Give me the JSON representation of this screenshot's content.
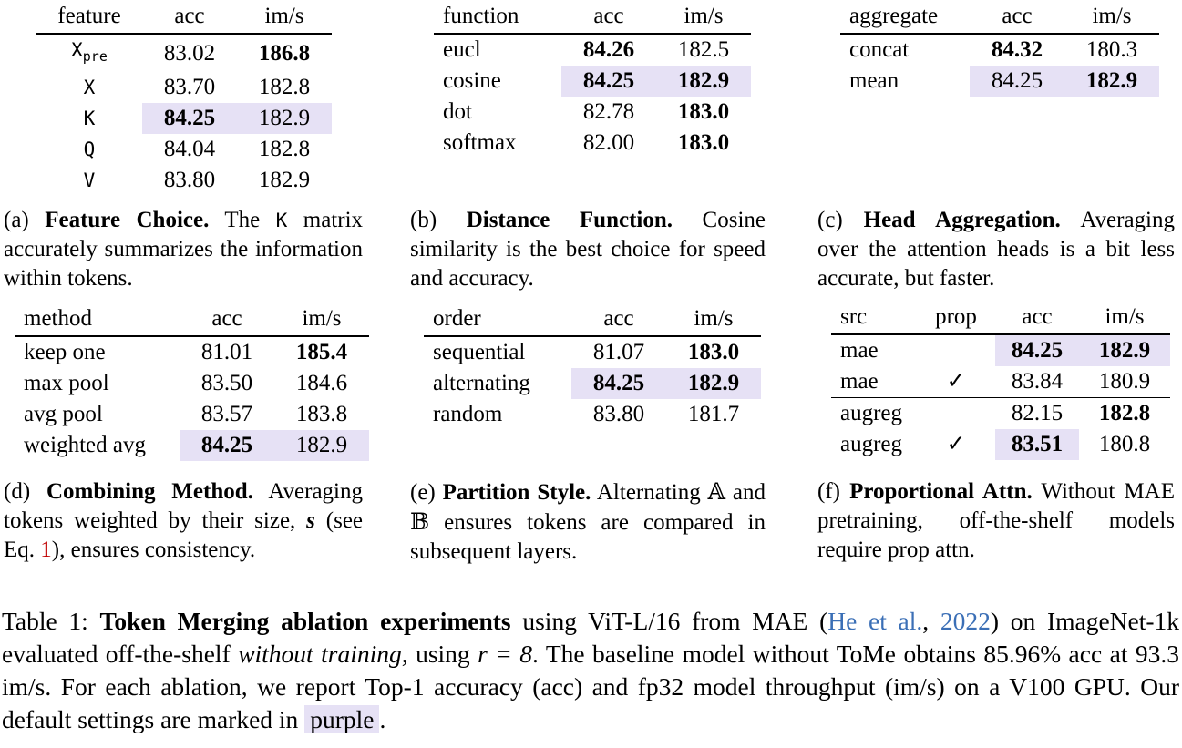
{
  "tables": {
    "a": {
      "headers": [
        "feature",
        "acc",
        "im/s"
      ],
      "rows": [
        {
          "name": "X",
          "sub": "pre",
          "acc": "83.02",
          "ims": "186.8"
        },
        {
          "name": "X",
          "acc": "83.70",
          "ims": "182.8"
        },
        {
          "name": "K",
          "acc": "84.25",
          "ims": "182.9"
        },
        {
          "name": "Q",
          "acc": "84.04",
          "ims": "182.8"
        },
        {
          "name": "V",
          "acc": "83.80",
          "ims": "182.9"
        }
      ]
    },
    "b": {
      "headers": [
        "function",
        "acc",
        "im/s"
      ],
      "rows": [
        {
          "name": "eucl",
          "acc": "84.26",
          "ims": "182.5"
        },
        {
          "name": "cosine",
          "acc": "84.25",
          "ims": "182.9"
        },
        {
          "name": "dot",
          "acc": "82.78",
          "ims": "183.0"
        },
        {
          "name": "softmax",
          "acc": "82.00",
          "ims": "183.0"
        }
      ]
    },
    "c": {
      "headers": [
        "aggregate",
        "acc",
        "im/s"
      ],
      "rows": [
        {
          "name": "concat",
          "acc": "84.32",
          "ims": "180.3"
        },
        {
          "name": "mean",
          "acc": "84.25",
          "ims": "182.9"
        }
      ]
    },
    "d": {
      "headers": [
        "method",
        "acc",
        "im/s"
      ],
      "rows": [
        {
          "name": "keep one",
          "acc": "81.01",
          "ims": "185.4"
        },
        {
          "name": "max pool",
          "acc": "83.50",
          "ims": "184.6"
        },
        {
          "name": "avg pool",
          "acc": "83.57",
          "ims": "183.8"
        },
        {
          "name": "weighted avg",
          "acc": "84.25",
          "ims": "182.9"
        }
      ]
    },
    "e": {
      "headers": [
        "order",
        "acc",
        "im/s"
      ],
      "rows": [
        {
          "name": "sequential",
          "acc": "81.07",
          "ims": "183.0"
        },
        {
          "name": "alternating",
          "acc": "84.25",
          "ims": "182.9"
        },
        {
          "name": "random",
          "acc": "83.80",
          "ims": "181.7"
        }
      ]
    },
    "f": {
      "headers": [
        "src",
        "prop",
        "acc",
        "im/s"
      ],
      "rows": [
        {
          "src": "mae",
          "prop": "",
          "acc": "84.25",
          "ims": "182.9"
        },
        {
          "src": "mae",
          "prop": "✓",
          "acc": "83.84",
          "ims": "180.9"
        },
        {
          "src": "augreg",
          "prop": "",
          "acc": "82.15",
          "ims": "182.8"
        },
        {
          "src": "augreg",
          "prop": "✓",
          "acc": "83.51",
          "ims": "180.8"
        }
      ]
    }
  },
  "captions": {
    "a": {
      "label": "(a)",
      "title": "Feature Choice.",
      "pre": "The",
      "code": "K",
      "post": "matrix accurately summarizes the information within tokens."
    },
    "b": {
      "label": "(b)",
      "title": "Distance Function.",
      "text": "Cosine similarity is the best choice for speed and accuracy."
    },
    "c": {
      "label": "(c)",
      "title": "Head Aggregation.",
      "text": "Averaging over the attention heads is a bit less accurate, but faster."
    },
    "d": {
      "label": "(d)",
      "title": "Combining Method.",
      "text1": "Averaging tokens weighted by their size,",
      "sym": "s",
      "text2": "(see Eq.",
      "ref": "1",
      "text3": "), ensures consistency."
    },
    "e": {
      "label": "(e)",
      "title": "Partition Style.",
      "text1": "Alternating",
      "symA": "𝔸",
      "and": "and",
      "symB": "𝔹",
      "text2": "ensures tokens are compared in subsequent layers."
    },
    "f": {
      "label": "(f)",
      "title": "Proportional Attn.",
      "text": "Without MAE pretraining, off-the-shelf models require prop attn."
    }
  },
  "main_caption": {
    "label": "Table 1:",
    "title": "Token Merging ablation experiments",
    "t1": "using ViT-L/16 from MAE (",
    "cite_author": "He et al.",
    "comma": ", ",
    "cite_year": "2022",
    "t2": ") on ImageNet-1k evaluated off-the-shelf",
    "ital": "without training",
    "t3": ", using",
    "math": "r = 8",
    "t4": ". The baseline model without ToMe obtains 85.96% acc at 93.3 im/s. For each ablation, we report Top-1 accuracy (acc) and fp32 model throughput (im/s) on a V100 GPU. Our default settings are marked in",
    "purple": "purple",
    "end": "."
  },
  "colors": {
    "highlight": "#e6e1f5",
    "ref_red": "#c00000",
    "cite_blue": "#3b6fb6"
  }
}
